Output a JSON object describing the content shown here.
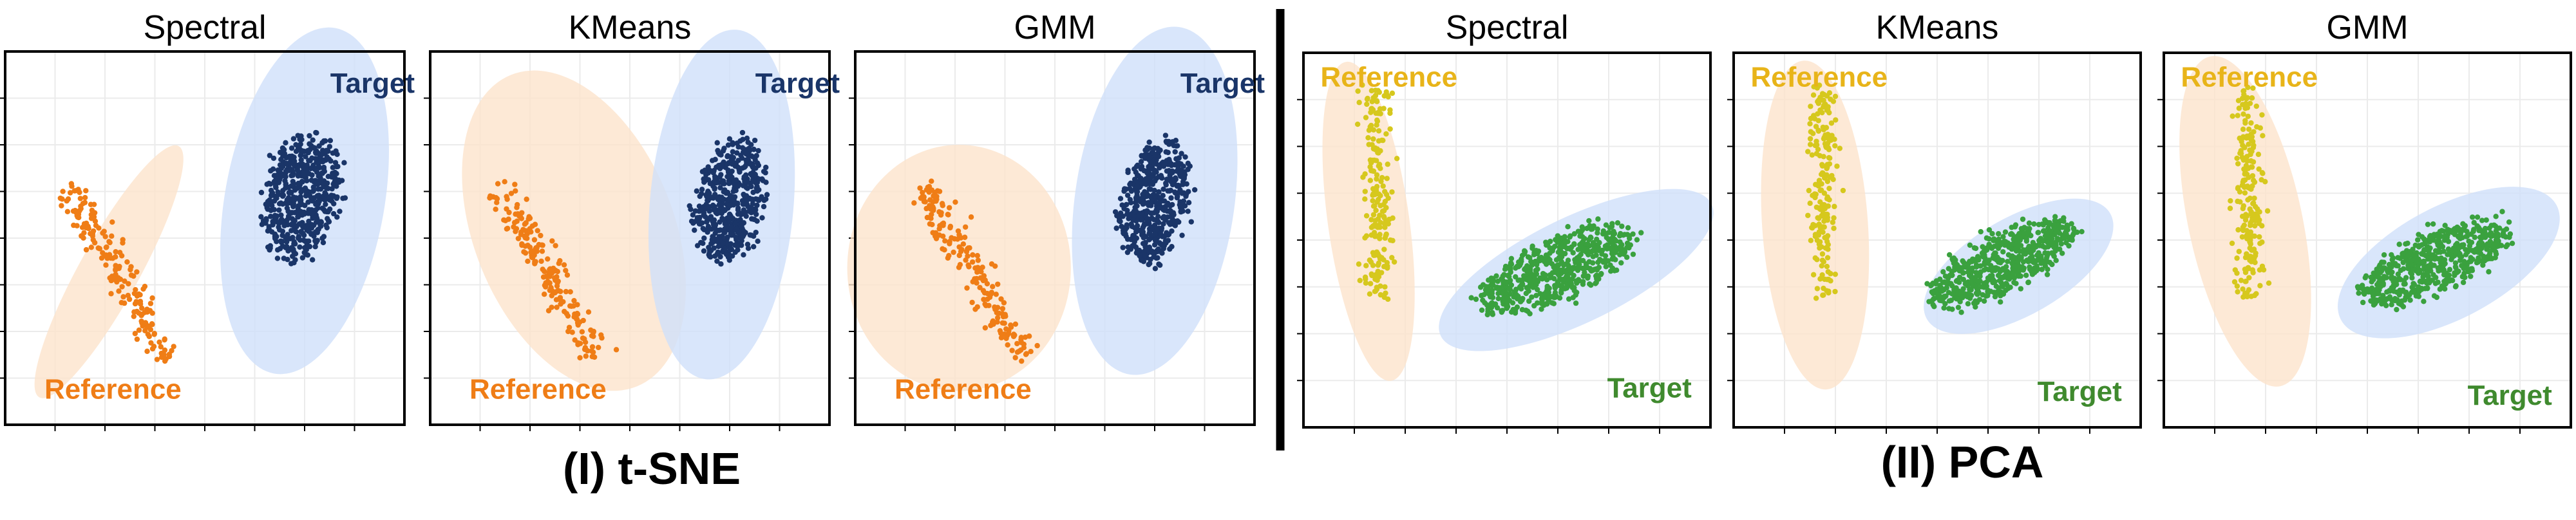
{
  "figure": {
    "groups": [
      {
        "label": "(I) t-SNE"
      },
      {
        "label": "(II) PCA"
      }
    ],
    "colors": {
      "reference_tsne": "#ef7d16",
      "target_tsne": "#1a3568",
      "reference_pca": "#d6c81d",
      "target_pca": "#3aa13e",
      "reference_label_pca": "#e8b419",
      "target_label_pca": "#3f8a2e",
      "reference_ellipse": "#fde3cc",
      "target_ellipse": "#cfe0fa"
    }
  },
  "chart_data": [
    {
      "type": "scatter",
      "group": "(I) t-SNE",
      "title": "Spectral",
      "xlabel": "",
      "ylabel": "",
      "xlim": [
        0,
        100
      ],
      "ylim": [
        0,
        100
      ],
      "grid": true,
      "series": [
        {
          "name": "Reference",
          "color": "#ef7d16",
          "point_count": 180,
          "axis_start": [
            16,
            64
          ],
          "axis_end": [
            41,
            18
          ],
          "half_width": 3.5
        },
        {
          "name": "Target",
          "color": "#1a3568",
          "point_count": 520,
          "center": [
            74,
            61
          ],
          "spread": [
            18,
            34
          ],
          "tilt_deg": -10
        }
      ],
      "ellipses": [
        {
          "cluster": "Reference",
          "center": [
            26,
            41
          ],
          "radii": [
            36,
            8
          ],
          "angle_deg": 61
        },
        {
          "cluster": "Target",
          "center": [
            75,
            60
          ],
          "radii": [
            20,
            47
          ],
          "angle_deg": -10
        }
      ],
      "annotations": [
        {
          "text": "Target",
          "color": "#1a3568",
          "x": 92,
          "y": 91
        },
        {
          "text": "Reference",
          "color": "#ef7d16",
          "x": 27,
          "y": 9
        }
      ]
    },
    {
      "type": "scatter",
      "group": "(I) t-SNE",
      "title": "KMeans",
      "xlabel": "",
      "ylabel": "",
      "xlim": [
        0,
        100
      ],
      "ylim": [
        0,
        100
      ],
      "grid": true,
      "series": [
        {
          "name": "Reference",
          "color": "#ef7d16",
          "point_count": 190,
          "axis_start": [
            17,
            64
          ],
          "axis_end": [
            42,
            18
          ],
          "half_width": 3.5
        },
        {
          "name": "Target",
          "color": "#1a3568",
          "point_count": 500,
          "center": [
            75,
            60
          ],
          "spread": [
            16,
            33
          ],
          "tilt_deg": -10
        }
      ],
      "ellipses": [
        {
          "cluster": "Reference",
          "center": [
            36,
            52
          ],
          "radii": [
            25,
            45
          ],
          "angle_deg": 22
        },
        {
          "cluster": "Target",
          "center": [
            73,
            59
          ],
          "radii": [
            18,
            47
          ],
          "angle_deg": -5
        }
      ],
      "annotations": [
        {
          "text": "Target",
          "color": "#1a3568",
          "x": 92,
          "y": 91
        },
        {
          "text": "Reference",
          "color": "#ef7d16",
          "x": 27,
          "y": 9
        }
      ]
    },
    {
      "type": "scatter",
      "group": "(I) t-SNE",
      "title": "GMM",
      "xlabel": "",
      "ylabel": "",
      "xlim": [
        0,
        100
      ],
      "ylim": [
        0,
        100
      ],
      "grid": true,
      "series": [
        {
          "name": "Reference",
          "color": "#ef7d16",
          "point_count": 190,
          "axis_start": [
            17,
            64
          ],
          "axis_end": [
            42,
            18
          ],
          "half_width": 3.5
        },
        {
          "name": "Target",
          "color": "#1a3568",
          "point_count": 500,
          "center": [
            75,
            60
          ],
          "spread": [
            16,
            33
          ],
          "tilt_deg": -10
        }
      ],
      "ellipses": [
        {
          "cluster": "Reference",
          "center": [
            26,
            42
          ],
          "radii": [
            28,
            33
          ],
          "angle_deg": 0
        },
        {
          "cluster": "Target",
          "center": [
            75,
            60
          ],
          "radii": [
            20,
            47
          ],
          "angle_deg": -8
        }
      ],
      "annotations": [
        {
          "text": "Target",
          "color": "#1a3568",
          "x": 92,
          "y": 91
        },
        {
          "text": "Reference",
          "color": "#ef7d16",
          "x": 27,
          "y": 9
        }
      ]
    },
    {
      "type": "scatter",
      "group": "(II) PCA",
      "title": "Spectral",
      "xlabel": "",
      "ylabel": "",
      "xlim": [
        0,
        100
      ],
      "ylim": [
        0,
        100
      ],
      "grid": true,
      "series": [
        {
          "name": "Reference",
          "color": "#d6c81d",
          "point_count": 200,
          "axis_start": [
            18,
            91
          ],
          "axis_end": [
            18,
            34
          ],
          "half_width": 3
        },
        {
          "name": "Target",
          "color": "#3aa13e",
          "point_count": 560,
          "center": [
            62,
            42
          ],
          "spread": [
            42,
            15
          ],
          "tilt_deg": 28
        }
      ],
      "ellipses": [
        {
          "cluster": "Reference",
          "center": [
            16,
            55
          ],
          "radii": [
            10,
            43
          ],
          "angle_deg": 8
        },
        {
          "cluster": "Target",
          "center": [
            67,
            42
          ],
          "radii": [
            37,
            14
          ],
          "angle_deg": 26
        }
      ],
      "annotations": [
        {
          "text": "Reference",
          "color": "#e8b419",
          "x": 21,
          "y": 93
        },
        {
          "text": "Target",
          "color": "#3f8a2e",
          "x": 85,
          "y": 10
        }
      ]
    },
    {
      "type": "scatter",
      "group": "(II) PCA",
      "title": "KMeans",
      "xlabel": "",
      "ylabel": "",
      "xlim": [
        0,
        100
      ],
      "ylim": [
        0,
        100
      ],
      "grid": true,
      "series": [
        {
          "name": "Reference",
          "color": "#d6c81d",
          "point_count": 200,
          "axis_start": [
            22,
            91
          ],
          "axis_end": [
            22,
            34
          ],
          "half_width": 3
        },
        {
          "name": "Target",
          "color": "#3aa13e",
          "point_count": 560,
          "center": [
            66,
            44
          ],
          "spread": [
            40,
            14
          ],
          "tilt_deg": 28
        }
      ],
      "ellipses": [
        {
          "cluster": "Reference",
          "center": [
            20,
            54
          ],
          "radii": [
            13,
            44
          ],
          "angle_deg": 4
        },
        {
          "cluster": "Target",
          "center": [
            70,
            43
          ],
          "radii": [
            26,
            13
          ],
          "angle_deg": 30
        }
      ],
      "annotations": [
        {
          "text": "Reference",
          "color": "#e8b419",
          "x": 21,
          "y": 93
        },
        {
          "text": "Target",
          "color": "#3f8a2e",
          "x": 85,
          "y": 9
        }
      ]
    },
    {
      "type": "scatter",
      "group": "(II) PCA",
      "title": "GMM",
      "xlabel": "",
      "ylabel": "",
      "xlim": [
        0,
        100
      ],
      "ylim": [
        0,
        100
      ],
      "grid": true,
      "series": [
        {
          "name": "Reference",
          "color": "#d6c81d",
          "point_count": 200,
          "axis_start": [
            21,
            91
          ],
          "axis_end": [
            21,
            34
          ],
          "half_width": 3
        },
        {
          "name": "Target",
          "color": "#3aa13e",
          "point_count": 560,
          "center": [
            66,
            44
          ],
          "spread": [
            40,
            14
          ],
          "tilt_deg": 28
        }
      ],
      "ellipses": [
        {
          "cluster": "Reference",
          "center": [
            20,
            55
          ],
          "radii": [
            14,
            45
          ],
          "angle_deg": 12
        },
        {
          "cluster": "Target",
          "center": [
            70,
            44
          ],
          "radii": [
            30,
            15
          ],
          "angle_deg": 28
        }
      ],
      "annotations": [
        {
          "text": "Reference",
          "color": "#e8b419",
          "x": 21,
          "y": 93
        },
        {
          "text": "Target",
          "color": "#3f8a2e",
          "x": 85,
          "y": 8
        }
      ]
    }
  ]
}
